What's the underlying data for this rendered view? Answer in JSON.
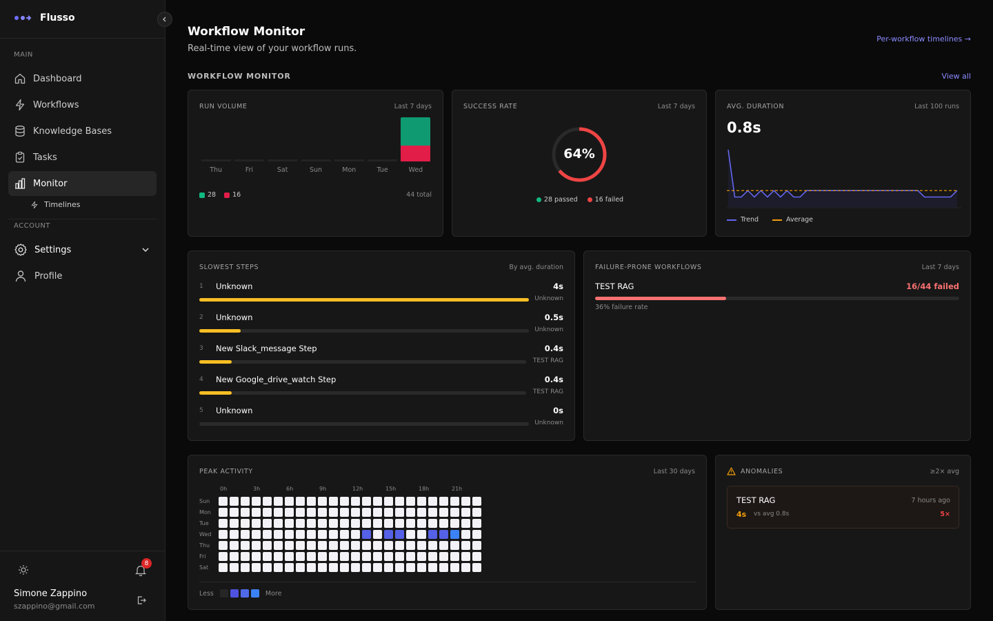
{
  "sidebar": {
    "brand": "Flusso",
    "main_label": "MAIN",
    "items": [
      "Dashboard",
      "Workflows",
      "Knowledge Bases",
      "Tasks",
      "Monitor"
    ],
    "sub_item": "Timelines",
    "account_label": "ACCOUNT",
    "settings": "Settings",
    "profile": "Profile",
    "notif_count": "8",
    "user_name": "Simone Zappino",
    "user_email": "szappino@gmail.com"
  },
  "header": {
    "title": "Workflow Monitor",
    "subtitle": "Real-time view of your workflow runs.",
    "link": "Per-workflow timelines →",
    "section": "WORKFLOW MONITOR",
    "view_all": "View all"
  },
  "run_volume": {
    "title": "RUN VOLUME",
    "range": "Last 7 days",
    "days": [
      "Thu",
      "Fri",
      "Sat",
      "Sun",
      "Mon",
      "Tue",
      "Wed"
    ],
    "passed": [
      0,
      0,
      0,
      0,
      0,
      0,
      28
    ],
    "failed": [
      0,
      0,
      0,
      0,
      0,
      0,
      16
    ],
    "legend_passed": "28",
    "legend_failed": "16",
    "total": "44 total",
    "color_passed": "#0f9a72",
    "color_failed": "#e11d48"
  },
  "success_rate": {
    "title": "SUCCESS RATE",
    "range": "Last 7 days",
    "percent": 64,
    "label": "64%",
    "passed": "28 passed",
    "failed": "16 failed",
    "color_passed": "#10b981",
    "color_failed": "#ef4444"
  },
  "avg_duration": {
    "title": "AVG. DURATION",
    "range": "Last 100 runs",
    "value": "0.8s",
    "trend": [
      4,
      0.3,
      0.3,
      0.8,
      0.3,
      0.8,
      0.3,
      0.8,
      0.3,
      0.8,
      0.3,
      0.3,
      0.8,
      0.8,
      0.8,
      0.8,
      0.8,
      0.8,
      0.8,
      0.8,
      0.8,
      0.8,
      0.8,
      0.8,
      0.8,
      0.8,
      0.8,
      0.8,
      0.8,
      0.8,
      0.3,
      0.3,
      0.3,
      0.3,
      0.3,
      0.8
    ],
    "average": 0.8,
    "legend_trend": "Trend",
    "legend_avg": "Average",
    "color_trend": "#6366f1",
    "color_avg": "#f59e0b"
  },
  "slowest": {
    "title": "SLOWEST STEPS",
    "range": "By avg. duration",
    "steps": [
      {
        "rank": "1",
        "name": "Unknown",
        "value": "4s",
        "sub": "Unknown",
        "frac": 1.0
      },
      {
        "rank": "2",
        "name": "Unknown",
        "value": "0.5s",
        "sub": "Unknown",
        "frac": 0.125
      },
      {
        "rank": "3",
        "name": "New Slack_message Step",
        "value": "0.4s",
        "sub": "TEST RAG",
        "frac": 0.1
      },
      {
        "rank": "4",
        "name": "New Google_drive_watch Step",
        "value": "0.4s",
        "sub": "TEST RAG",
        "frac": 0.1
      },
      {
        "rank": "5",
        "name": "Unknown",
        "value": "0s",
        "sub": "Unknown",
        "frac": 0
      }
    ],
    "color": "#fbbf24"
  },
  "failure": {
    "title": "FAILURE-PRONE WORKFLOWS",
    "range": "Last 7 days",
    "name": "TEST RAG",
    "stat": "16/44 failed",
    "rate": "36% failure rate",
    "frac": 0.36,
    "color": "#f87171"
  },
  "peak": {
    "title": "PEAK ACTIVITY",
    "range": "Last 30 days",
    "hours": [
      "0h",
      "3h",
      "6h",
      "9h",
      "12h",
      "15h",
      "18h",
      "21h"
    ],
    "days": [
      "Sun",
      "Mon",
      "Tue",
      "Wed",
      "Thu",
      "Fri",
      "Sat"
    ],
    "active": {
      "wed": {
        "13": 2,
        "15": 2,
        "16": 2,
        "19": 2,
        "20": 2,
        "21": 3
      }
    },
    "less": "Less",
    "more": "More"
  },
  "anomalies": {
    "title": "ANOMALIES",
    "range": "≥2× avg",
    "name": "TEST RAG",
    "time": "7 hours ago",
    "value": "4s",
    "vs": "vs avg 0.8s",
    "mult": "5×"
  }
}
